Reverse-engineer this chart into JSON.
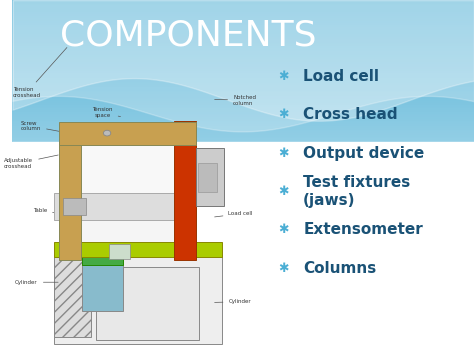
{
  "title": "COMPONENTS",
  "title_color": "#FFFFFF",
  "title_fontsize": 26,
  "bullet_items": [
    "Load cell",
    "Cross head",
    "Output device",
    "Test fixtures\n(jaws)",
    "Extensometer",
    "Columns"
  ],
  "bullet_color": "#1A5276",
  "bullet_fontsize": 11,
  "bullet_star_color": "#4BAED4",
  "frame_color": "#C8A050",
  "left_col_color": "#C8A050",
  "right_col_color": "#CC3300",
  "table_color": "#AACC00",
  "cylinder_color": "#88BBCC",
  "green_piston_color": "#44AA44"
}
